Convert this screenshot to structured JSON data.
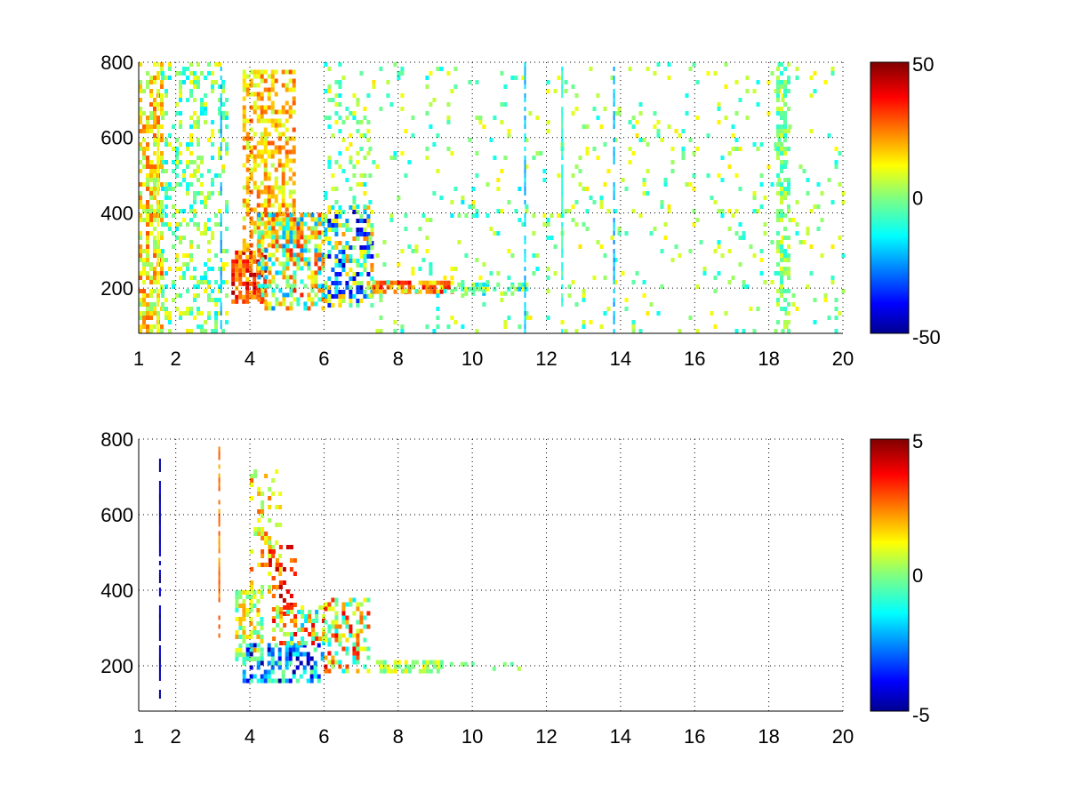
{
  "colormap": "jet",
  "chart_data": [
    {
      "type": "heatmap",
      "title": "",
      "xlabel": "",
      "ylabel": "",
      "xlim": [
        1,
        20
      ],
      "ylim": [
        80,
        800
      ],
      "x_ticks": [
        {
          "value": 1,
          "label": "1"
        },
        {
          "value": 2,
          "label": "2"
        },
        {
          "value": 4,
          "label": "4"
        },
        {
          "value": 6,
          "label": "6"
        },
        {
          "value": 8,
          "label": "8"
        },
        {
          "value": 10,
          "label": "10"
        },
        {
          "value": 12,
          "label": "12"
        },
        {
          "value": 14,
          "label": "14"
        },
        {
          "value": 16,
          "label": "16"
        },
        {
          "value": 18,
          "label": "18"
        },
        {
          "value": 20,
          "label": "20"
        }
      ],
      "y_ticks": [
        {
          "value": 200,
          "label": "200"
        },
        {
          "value": 400,
          "label": "400"
        },
        {
          "value": 600,
          "label": "600"
        },
        {
          "value": 800,
          "label": "800"
        }
      ],
      "grid": "dotted",
      "colorbar": {
        "min": -50,
        "max": 50,
        "ticks": [
          {
            "value": 50,
            "label": "50"
          },
          {
            "value": 0,
            "label": "0"
          },
          {
            "value": -50,
            "label": "-50"
          }
        ]
      },
      "regions": [
        {
          "x": [
            1.0,
            1.6
          ],
          "y": [
            80,
            800
          ],
          "density": 0.55,
          "v": [
            0,
            30
          ]
        },
        {
          "x": [
            1.6,
            3.4
          ],
          "y": [
            80,
            800
          ],
          "density": 0.3,
          "v": [
            -15,
            15
          ]
        },
        {
          "x": [
            3.5,
            4.4
          ],
          "y": [
            160,
            300
          ],
          "density": 0.75,
          "v": [
            15,
            48
          ]
        },
        {
          "x": [
            3.8,
            5.2
          ],
          "y": [
            300,
            780
          ],
          "density": 0.5,
          "v": [
            5,
            30
          ]
        },
        {
          "x": [
            4.2,
            6.0
          ],
          "y": [
            150,
            400
          ],
          "density": 0.6,
          "v": [
            -25,
            35
          ]
        },
        {
          "x": [
            6.0,
            7.3
          ],
          "y": [
            150,
            420
          ],
          "density": 0.55,
          "v": [
            -45,
            25
          ]
        },
        {
          "x": [
            6.0,
            7.2
          ],
          "y": [
            420,
            800
          ],
          "density": 0.2,
          "v": [
            -15,
            15
          ]
        },
        {
          "x": [
            7.3,
            9.5
          ],
          "y": [
            190,
            220
          ],
          "density": 0.75,
          "v": [
            10,
            38
          ]
        },
        {
          "x": [
            9.5,
            11.5
          ],
          "y": [
            190,
            215
          ],
          "density": 0.6,
          "v": [
            -20,
            15
          ]
        },
        {
          "x": [
            7.2,
            12.0
          ],
          "y": [
            80,
            800
          ],
          "density": 0.07,
          "v": [
            -15,
            15
          ]
        },
        {
          "x": [
            12.0,
            20.0
          ],
          "y": [
            80,
            800
          ],
          "density": 0.07,
          "v": [
            -12,
            15
          ]
        },
        {
          "x": [
            18.2,
            18.5
          ],
          "y": [
            80,
            800
          ],
          "density": 0.5,
          "v": [
            -10,
            10
          ]
        }
      ],
      "stripes": [
        {
          "x": 1.5,
          "y": [
            80,
            800
          ],
          "v": 12
        },
        {
          "x": 3.2,
          "y": [
            80,
            800
          ],
          "v": -20
        },
        {
          "x": 11.4,
          "y": [
            80,
            800
          ],
          "v": -18
        },
        {
          "x": 12.4,
          "y": [
            80,
            800
          ],
          "v": -8
        },
        {
          "x": 13.8,
          "y": [
            80,
            800
          ],
          "v": -20
        }
      ]
    },
    {
      "type": "heatmap",
      "title": "",
      "xlabel": "",
      "ylabel": "",
      "xlim": [
        1,
        20
      ],
      "ylim": [
        80,
        800
      ],
      "x_ticks": [
        {
          "value": 1,
          "label": "1"
        },
        {
          "value": 2,
          "label": "2"
        },
        {
          "value": 4,
          "label": "4"
        },
        {
          "value": 6,
          "label": "6"
        },
        {
          "value": 8,
          "label": "8"
        },
        {
          "value": 10,
          "label": "10"
        },
        {
          "value": 12,
          "label": "12"
        },
        {
          "value": 14,
          "label": "14"
        },
        {
          "value": 16,
          "label": "16"
        },
        {
          "value": 18,
          "label": "18"
        },
        {
          "value": 20,
          "label": "20"
        }
      ],
      "y_ticks": [
        {
          "value": 200,
          "label": "200"
        },
        {
          "value": 400,
          "label": "400"
        },
        {
          "value": 600,
          "label": "600"
        },
        {
          "value": 800,
          "label": "800"
        }
      ],
      "grid": "dotted",
      "colorbar": {
        "min": -5,
        "max": 5,
        "ticks": [
          {
            "value": 5,
            "label": "5"
          },
          {
            "value": 0,
            "label": "0"
          },
          {
            "value": -5,
            "label": "-5"
          }
        ]
      },
      "regions": [
        {
          "x": [
            3.6,
            4.3
          ],
          "y": [
            200,
            400
          ],
          "density": 0.55,
          "v": [
            -1,
            2.5
          ]
        },
        {
          "x": [
            4.0,
            4.8
          ],
          "y": [
            400,
            720
          ],
          "density": 0.3,
          "v": [
            0,
            3
          ]
        },
        {
          "x": [
            4.5,
            5.2
          ],
          "y": [
            330,
            520
          ],
          "density": 0.3,
          "v": [
            2,
            4.5
          ]
        },
        {
          "x": [
            3.8,
            6.0
          ],
          "y": [
            160,
            260
          ],
          "density": 0.55,
          "v": [
            -4.8,
            0
          ]
        },
        {
          "x": [
            4.6,
            6.0
          ],
          "y": [
            260,
            360
          ],
          "density": 0.45,
          "v": [
            -2,
            4
          ]
        },
        {
          "x": [
            6.0,
            7.2
          ],
          "y": [
            180,
            380
          ],
          "density": 0.5,
          "v": [
            -1.5,
            4
          ]
        },
        {
          "x": [
            7.4,
            9.2
          ],
          "y": [
            190,
            215
          ],
          "density": 0.6,
          "v": [
            -0.5,
            1.5
          ]
        },
        {
          "x": [
            9.2,
            11.5
          ],
          "y": [
            190,
            210
          ],
          "density": 0.15,
          "v": [
            -0.5,
            1
          ]
        }
      ],
      "stripes": [
        {
          "x": 1.55,
          "y": [
            100,
            760
          ],
          "v": -4.5
        },
        {
          "x": 3.15,
          "y": [
            280,
            780
          ],
          "v": 2.5
        }
      ]
    }
  ]
}
